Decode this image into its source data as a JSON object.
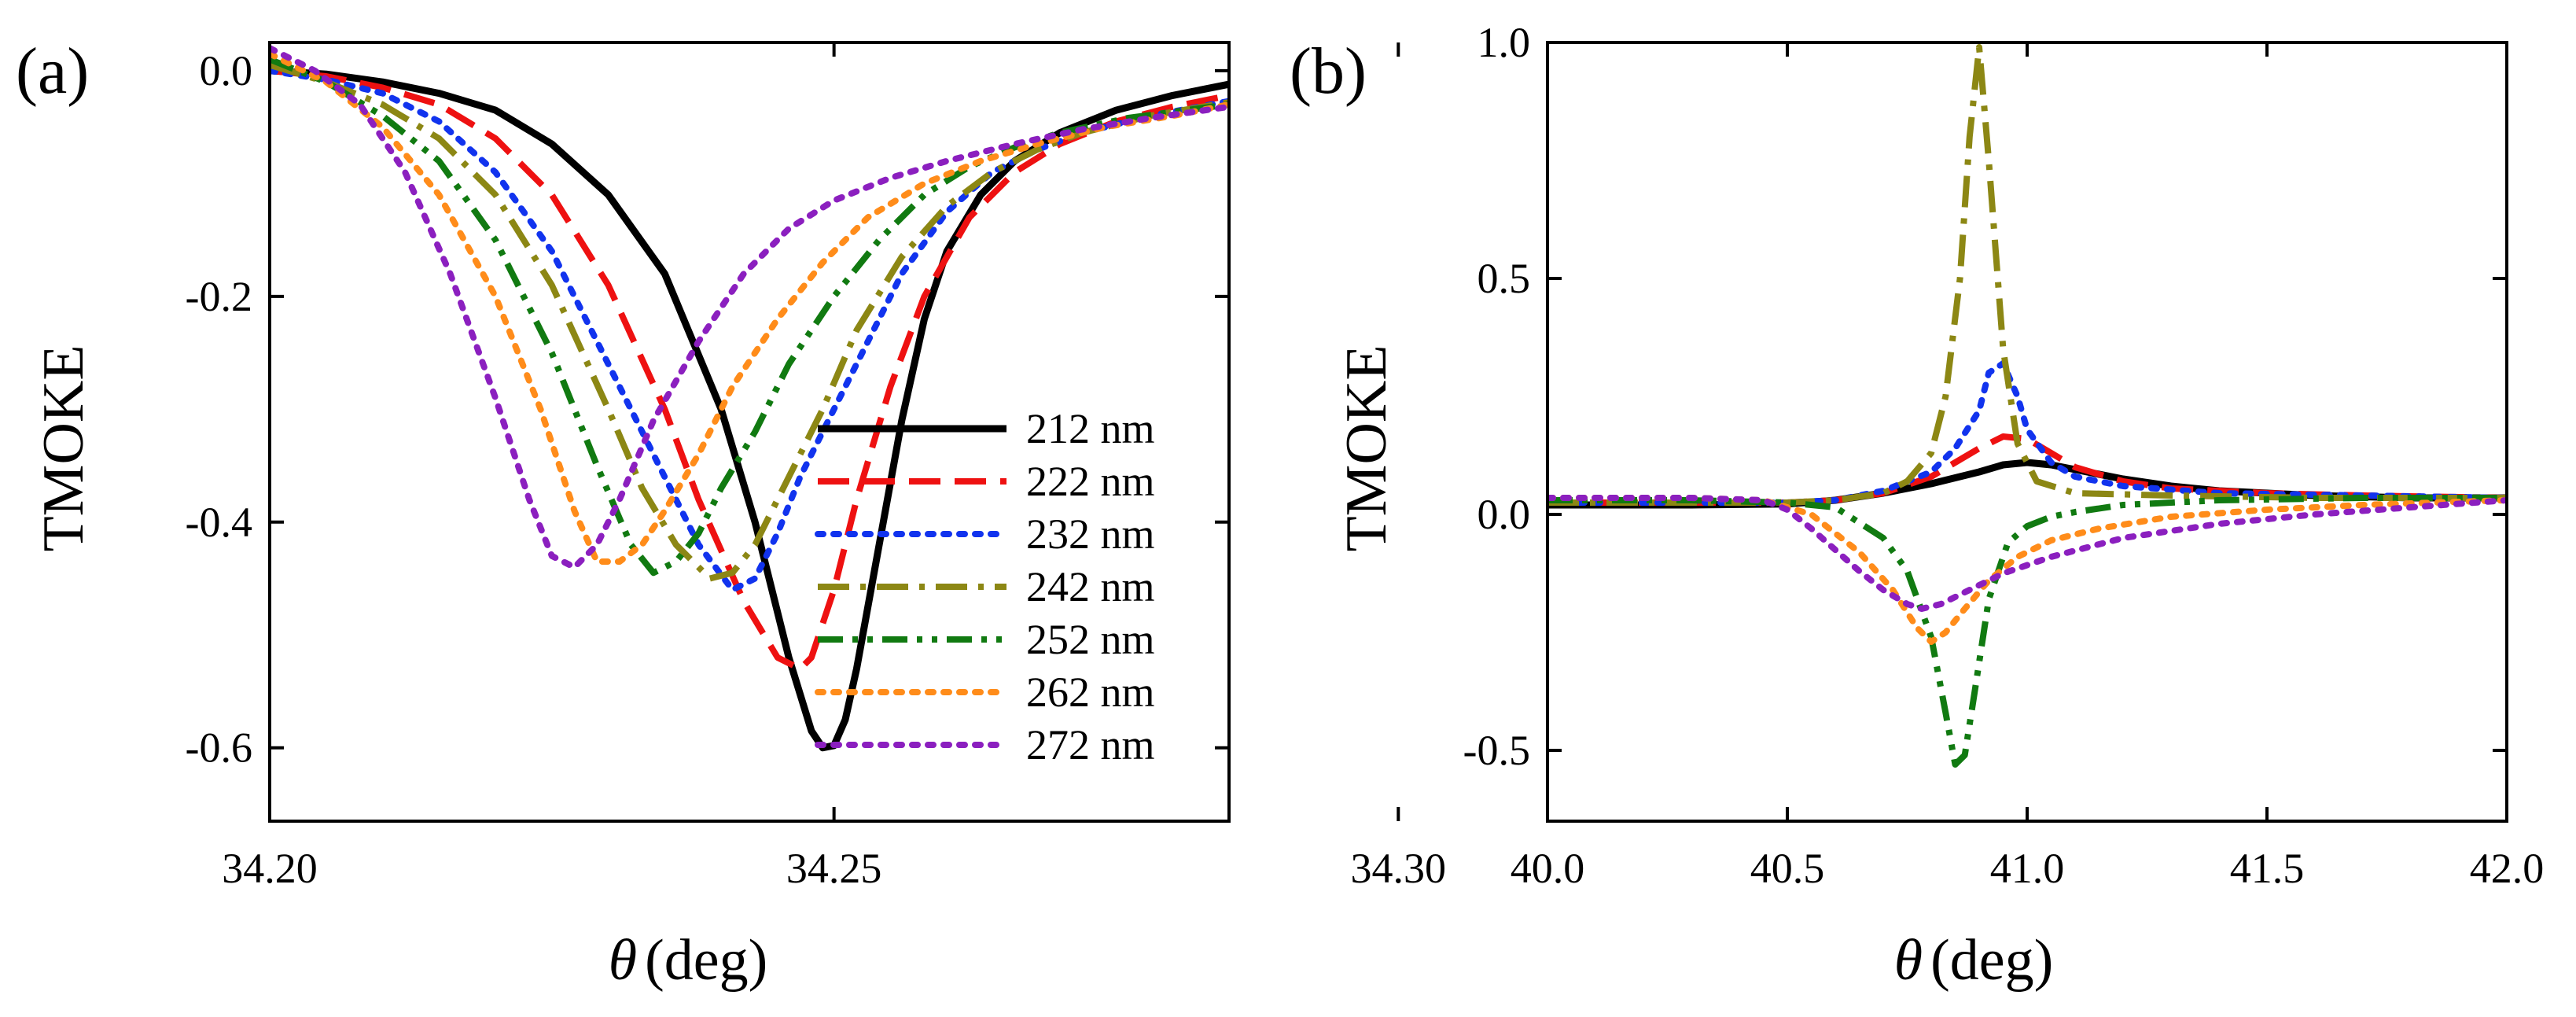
{
  "figure": {
    "panels": [
      {
        "panel_label": "(a)",
        "ylabel": "TMOKE",
        "xlabel_symbol": "θ",
        "xlabel_unit": "(deg)",
        "xticks": [
          "34.20",
          "34.25",
          "34.30"
        ],
        "yticks": [
          "0.0",
          "-0.2",
          "-0.4",
          "-0.6"
        ]
      },
      {
        "panel_label": "(b)",
        "ylabel": "TMOKE",
        "xlabel_symbol": "θ",
        "xlabel_unit": "(deg)",
        "xticks": [
          "40.0",
          "40.5",
          "41.0",
          "41.5",
          "42.0"
        ],
        "yticks": [
          "1.0",
          "0.5",
          "0.0",
          "-0.5"
        ]
      }
    ],
    "legend": [
      "212 nm",
      "222 nm",
      "232 nm",
      "242 nm",
      "252 nm",
      "262 nm",
      "272 nm"
    ]
  },
  "chart_data": [
    {
      "type": "line",
      "title": "(a)",
      "xlabel": "θ (deg)",
      "ylabel": "TMOKE",
      "xlim": [
        34.2,
        34.285
      ],
      "ylim": [
        -0.665,
        0.025
      ],
      "xticks": [
        34.2,
        34.25,
        34.3
      ],
      "yticks": [
        0.0,
        -0.2,
        -0.4,
        -0.6
      ],
      "legend_position": "bottom-right",
      "series": [
        {
          "name": "212 nm",
          "color": "#000000",
          "style": "solid",
          "x": [
            34.2,
            34.205,
            34.21,
            34.215,
            34.22,
            34.225,
            34.23,
            34.235,
            34.24,
            34.243,
            34.246,
            34.248,
            34.249,
            34.25,
            34.251,
            34.252,
            34.254,
            34.256,
            34.258,
            34.26,
            34.263,
            34.266,
            34.27,
            34.275,
            34.28,
            34.285
          ],
          "y": [
            0.0,
            -0.003,
            -0.01,
            -0.02,
            -0.035,
            -0.065,
            -0.11,
            -0.18,
            -0.3,
            -0.4,
            -0.52,
            -0.585,
            -0.6,
            -0.598,
            -0.575,
            -0.53,
            -0.42,
            -0.31,
            -0.22,
            -0.16,
            -0.11,
            -0.08,
            -0.055,
            -0.035,
            -0.022,
            -0.012
          ]
        },
        {
          "name": "222 nm",
          "color": "#ee1111",
          "style": "dash",
          "x": [
            34.2,
            34.205,
            34.21,
            34.215,
            34.22,
            34.225,
            34.23,
            34.235,
            34.238,
            34.242,
            34.245,
            34.247,
            34.248,
            34.25,
            34.252,
            34.255,
            34.258,
            34.262,
            34.266,
            34.27,
            34.275,
            34.28,
            34.285
          ],
          "y": [
            0.0,
            -0.005,
            -0.015,
            -0.03,
            -0.06,
            -0.11,
            -0.19,
            -0.3,
            -0.38,
            -0.47,
            -0.52,
            -0.53,
            -0.52,
            -0.46,
            -0.38,
            -0.28,
            -0.2,
            -0.13,
            -0.09,
            -0.065,
            -0.045,
            -0.032,
            -0.022
          ]
        },
        {
          "name": "232 nm",
          "color": "#1133ee",
          "style": "dot",
          "x": [
            34.2,
            34.205,
            34.21,
            34.215,
            34.22,
            34.225,
            34.23,
            34.234,
            34.238,
            34.241,
            34.243,
            34.245,
            34.247,
            34.25,
            34.253,
            34.256,
            34.26,
            34.264,
            34.268,
            34.272,
            34.278,
            34.285
          ],
          "y": [
            0.0,
            -0.008,
            -0.02,
            -0.045,
            -0.09,
            -0.16,
            -0.26,
            -0.34,
            -0.42,
            -0.46,
            -0.45,
            -0.41,
            -0.36,
            -0.3,
            -0.24,
            -0.18,
            -0.125,
            -0.09,
            -0.07,
            -0.055,
            -0.04,
            -0.027
          ]
        },
        {
          "name": "242 nm",
          "color": "#8c8714",
          "style": "dashdot",
          "x": [
            34.2,
            34.205,
            34.21,
            34.215,
            34.22,
            34.225,
            34.23,
            34.233,
            34.236,
            34.239,
            34.241,
            34.243,
            34.246,
            34.249,
            34.252,
            34.256,
            34.26,
            34.264,
            34.268,
            34.272,
            34.278,
            34.285
          ],
          "y": [
            0.005,
            -0.01,
            -0.03,
            -0.06,
            -0.11,
            -0.19,
            -0.3,
            -0.37,
            -0.42,
            -0.45,
            -0.445,
            -0.42,
            -0.36,
            -0.3,
            -0.23,
            -0.165,
            -0.12,
            -0.09,
            -0.07,
            -0.055,
            -0.04,
            -0.028
          ]
        },
        {
          "name": "252 nm",
          "color": "#117a11",
          "style": "dashdotdot",
          "x": [
            34.2,
            34.205,
            34.21,
            34.215,
            34.22,
            34.225,
            34.229,
            34.232,
            34.234,
            34.236,
            34.238,
            34.24,
            34.243,
            34.246,
            34.25,
            34.254,
            34.258,
            34.262,
            34.266,
            34.27,
            34.276,
            34.285
          ],
          "y": [
            0.01,
            -0.01,
            -0.04,
            -0.08,
            -0.15,
            -0.25,
            -0.35,
            -0.42,
            -0.445,
            -0.435,
            -0.41,
            -0.37,
            -0.32,
            -0.26,
            -0.2,
            -0.15,
            -0.11,
            -0.085,
            -0.068,
            -0.055,
            -0.042,
            -0.03
          ]
        },
        {
          "name": "262 nm",
          "color": "#ff8c1a",
          "style": "dot",
          "x": [
            34.2,
            34.205,
            34.21,
            34.215,
            34.22,
            34.224,
            34.227,
            34.229,
            34.231,
            34.233,
            34.235,
            34.238,
            34.241,
            34.245,
            34.249,
            34.253,
            34.258,
            34.263,
            34.268,
            34.274,
            34.28,
            34.285
          ],
          "y": [
            0.015,
            -0.01,
            -0.05,
            -0.11,
            -0.2,
            -0.3,
            -0.39,
            -0.435,
            -0.435,
            -0.42,
            -0.39,
            -0.34,
            -0.28,
            -0.22,
            -0.17,
            -0.13,
            -0.1,
            -0.08,
            -0.065,
            -0.05,
            -0.04,
            -0.03
          ]
        },
        {
          "name": "272 nm",
          "color": "#8b1fbf",
          "style": "dot",
          "x": [
            34.2,
            34.204,
            34.208,
            34.212,
            34.216,
            34.22,
            34.223,
            34.225,
            34.227,
            34.229,
            34.231,
            34.234,
            34.238,
            34.242,
            34.246,
            34.25,
            34.255,
            34.26,
            34.266,
            34.272,
            34.278,
            34.285
          ],
          "y": [
            0.02,
            0.0,
            -0.03,
            -0.09,
            -0.18,
            -0.29,
            -0.38,
            -0.43,
            -0.44,
            -0.42,
            -0.38,
            -0.31,
            -0.24,
            -0.18,
            -0.14,
            -0.115,
            -0.095,
            -0.08,
            -0.065,
            -0.052,
            -0.042,
            -0.032
          ]
        }
      ]
    },
    {
      "type": "line",
      "title": "(b)",
      "xlabel": "θ (deg)",
      "ylabel": "TMOKE",
      "xlim": [
        40.0,
        42.0
      ],
      "ylim": [
        -0.65,
        1.0
      ],
      "xticks": [
        40.0,
        40.5,
        41.0,
        41.5,
        42.0
      ],
      "yticks": [
        1.0,
        0.5,
        0.0,
        -0.5
      ],
      "series": [
        {
          "name": "212 nm",
          "color": "#000000",
          "style": "solid",
          "x": [
            40.0,
            40.3,
            40.5,
            40.6,
            40.7,
            40.8,
            40.9,
            40.95,
            41.0,
            41.05,
            41.1,
            41.2,
            41.3,
            41.4,
            41.6,
            41.8,
            42.0
          ],
          "y": [
            0.02,
            0.02,
            0.022,
            0.03,
            0.045,
            0.065,
            0.09,
            0.105,
            0.11,
            0.105,
            0.095,
            0.075,
            0.06,
            0.05,
            0.04,
            0.035,
            0.035
          ]
        },
        {
          "name": "222 nm",
          "color": "#ee1111",
          "style": "dash",
          "x": [
            40.0,
            40.3,
            40.5,
            40.6,
            40.7,
            40.8,
            40.85,
            40.9,
            40.95,
            41.0,
            41.05,
            41.1,
            41.2,
            41.3,
            41.5,
            41.7,
            42.0
          ],
          "y": [
            0.025,
            0.025,
            0.025,
            0.03,
            0.045,
            0.08,
            0.11,
            0.14,
            0.165,
            0.16,
            0.13,
            0.1,
            0.07,
            0.055,
            0.045,
            0.04,
            0.035
          ]
        },
        {
          "name": "232 nm",
          "color": "#1133ee",
          "style": "dot",
          "x": [
            40.0,
            40.3,
            40.5,
            40.6,
            40.7,
            40.8,
            40.85,
            40.9,
            40.92,
            40.95,
            40.98,
            41.0,
            41.05,
            41.1,
            41.2,
            41.4,
            41.7,
            42.0
          ],
          "y": [
            0.025,
            0.025,
            0.025,
            0.03,
            0.05,
            0.09,
            0.14,
            0.22,
            0.3,
            0.32,
            0.25,
            0.18,
            0.11,
            0.08,
            0.06,
            0.045,
            0.04,
            0.035
          ]
        },
        {
          "name": "242 nm",
          "color": "#8c8714",
          "style": "dashdot",
          "x": [
            40.0,
            40.3,
            40.5,
            40.6,
            40.7,
            40.75,
            40.8,
            40.83,
            40.86,
            40.88,
            40.9,
            40.92,
            40.95,
            40.98,
            41.02,
            41.1,
            41.3,
            41.6,
            42.0
          ],
          "y": [
            0.025,
            0.025,
            0.025,
            0.03,
            0.045,
            0.07,
            0.13,
            0.25,
            0.5,
            0.8,
            0.99,
            0.75,
            0.35,
            0.15,
            0.07,
            0.045,
            0.04,
            0.035,
            0.035
          ]
        },
        {
          "name": "252 nm",
          "color": "#117a11",
          "style": "dashdotdot",
          "x": [
            40.0,
            40.3,
            40.5,
            40.6,
            40.7,
            40.75,
            40.8,
            40.83,
            40.85,
            40.87,
            40.89,
            40.92,
            40.96,
            41.0,
            41.05,
            41.1,
            41.2,
            41.4,
            41.7,
            42.0
          ],
          "y": [
            0.03,
            0.03,
            0.025,
            0.015,
            -0.05,
            -0.12,
            -0.26,
            -0.42,
            -0.53,
            -0.51,
            -0.38,
            -0.18,
            -0.06,
            -0.025,
            -0.005,
            0.005,
            0.02,
            0.03,
            0.035,
            0.035
          ]
        },
        {
          "name": "262 nm",
          "color": "#ff8c1a",
          "style": "dot",
          "x": [
            40.0,
            40.3,
            40.45,
            40.55,
            40.65,
            40.72,
            40.77,
            40.8,
            40.83,
            40.87,
            40.92,
            40.98,
            41.05,
            41.15,
            41.3,
            41.5,
            41.7,
            42.0
          ],
          "y": [
            0.035,
            0.035,
            0.03,
            0.0,
            -0.08,
            -0.16,
            -0.24,
            -0.27,
            -0.25,
            -0.2,
            -0.14,
            -0.09,
            -0.055,
            -0.03,
            -0.005,
            0.01,
            0.02,
            0.03
          ]
        },
        {
          "name": "272 nm",
          "color": "#8b1fbf",
          "style": "dot",
          "x": [
            40.0,
            40.3,
            40.45,
            40.5,
            40.55,
            40.6,
            40.65,
            40.7,
            40.75,
            40.78,
            40.82,
            40.88,
            40.95,
            41.05,
            41.2,
            41.4,
            41.6,
            41.8,
            42.0
          ],
          "y": [
            0.035,
            0.035,
            0.03,
            0.01,
            -0.03,
            -0.075,
            -0.12,
            -0.16,
            -0.19,
            -0.2,
            -0.19,
            -0.16,
            -0.125,
            -0.09,
            -0.05,
            -0.02,
            0.0,
            0.015,
            0.03
          ]
        }
      ]
    }
  ]
}
